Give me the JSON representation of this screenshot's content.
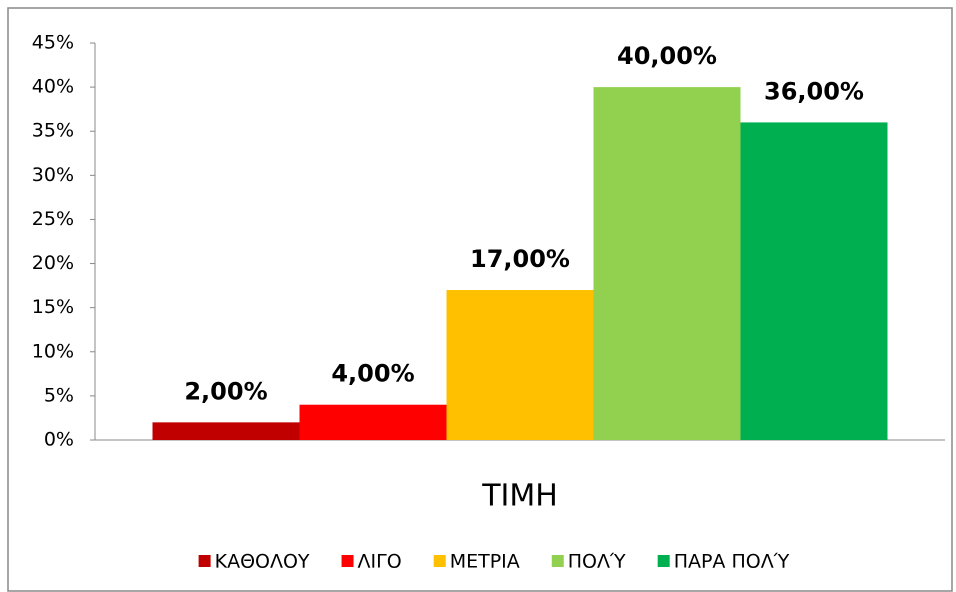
{
  "chart_data": {
    "type": "bar",
    "categories": [
      "ΤΙΜΗ"
    ],
    "series": [
      {
        "name": "ΚΑΘΟΛΟΥ",
        "color": "#c00000",
        "values": [
          2
        ],
        "value_labels": [
          "2,00%"
        ]
      },
      {
        "name": "ΛΙΓΟ",
        "color": "#ff0000",
        "values": [
          4
        ],
        "value_labels": [
          "4,00%"
        ]
      },
      {
        "name": "ΜΕΤΡΙΑ",
        "color": "#ffc000",
        "values": [
          17
        ],
        "value_labels": [
          "17,00%"
        ]
      },
      {
        "name": "ΠΟΛΎ",
        "color": "#92d050",
        "values": [
          40
        ],
        "value_labels": [
          "40,00%"
        ]
      },
      {
        "name": "ΠΑΡΑ ΠΟΛΎ",
        "color": "#00b050",
        "values": [
          36
        ],
        "value_labels": [
          "36,00%"
        ]
      }
    ],
    "ylim": [
      0,
      45
    ],
    "yticks": [
      {
        "value": 0,
        "label": "0%"
      },
      {
        "value": 5,
        "label": "5%"
      },
      {
        "value": 10,
        "label": "10%"
      },
      {
        "value": 15,
        "label": "15%"
      },
      {
        "value": 20,
        "label": "20%"
      },
      {
        "value": 25,
        "label": "25%"
      },
      {
        "value": 30,
        "label": "30%"
      },
      {
        "value": 35,
        "label": "35%"
      },
      {
        "value": 40,
        "label": "40%"
      },
      {
        "value": 45,
        "label": "45%"
      }
    ],
    "grid": false,
    "legend": "bottom"
  }
}
